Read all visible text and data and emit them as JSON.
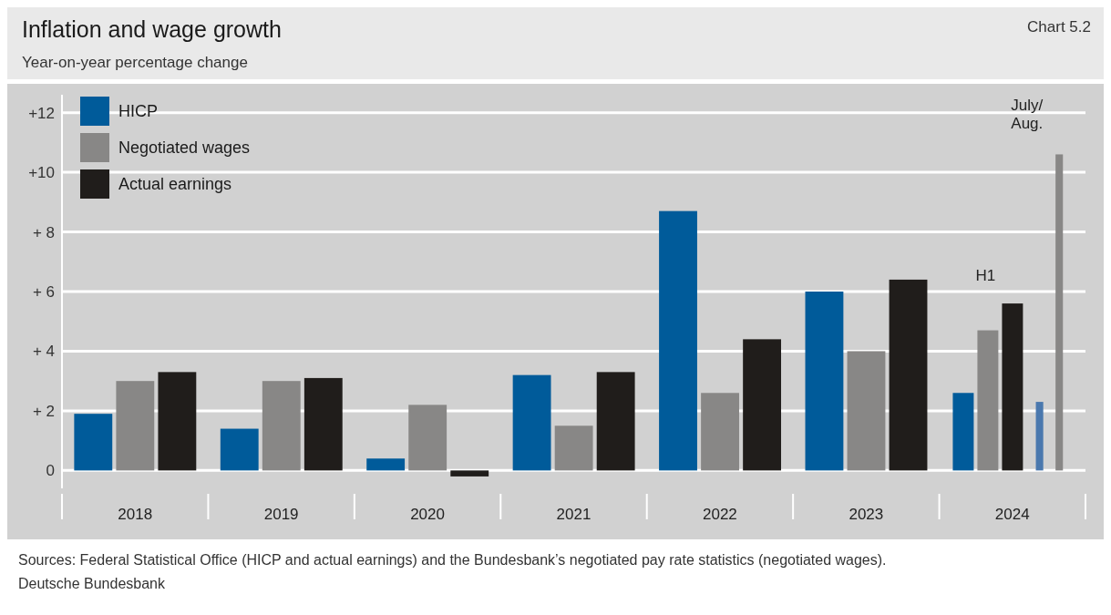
{
  "chart_data": {
    "type": "bar",
    "title": "Inflation and wage growth",
    "subtitle": "Year-on-year percentage change",
    "categories": [
      "2018",
      "2019",
      "2020",
      "2021",
      "2022",
      "2023",
      "2024"
    ],
    "series": [
      {
        "name": "HICP",
        "color": "#005b9a",
        "values": [
          1.9,
          1.4,
          0.4,
          3.2,
          8.7,
          6.0,
          2.6
        ]
      },
      {
        "name": "Negotiated wages",
        "color": "#888786",
        "values": [
          3.0,
          3.0,
          2.2,
          1.5,
          2.6,
          4.0,
          4.7
        ]
      },
      {
        "name": "Actual earnings",
        "color": "#201d1b",
        "values": [
          3.3,
          3.1,
          -0.2,
          3.3,
          4.4,
          6.4,
          5.6
        ]
      },
      {
        "color": "#4a78ae",
        "values": [
          null,
          null,
          null,
          null,
          null,
          null,
          2.3
        ]
      },
      {
        "color": "#888786",
        "values": [
          null,
          null,
          null,
          null,
          null,
          null,
          10.6
        ]
      }
    ],
    "ylim": [
      -0.6,
      12.6
    ],
    "yticks": [
      {
        "value": 0,
        "label": "0"
      },
      {
        "value": 2,
        "label": "+ 2"
      },
      {
        "value": 4,
        "label": "+ 4"
      },
      {
        "value": 6,
        "label": "+ 6"
      },
      {
        "value": 8,
        "label": "+ 8"
      },
      {
        "value": 10,
        "label": "+10"
      },
      {
        "value": 12,
        "label": "+12"
      }
    ],
    "grid": "y",
    "legend": "top left",
    "annotations": [
      "Chart 5.2",
      "H1",
      "July/\nAug.",
      "Sources: Federal Statistical Office (HICP and actual earnings) and the Bundesbank’s negotiated pay rate statistics (negotiated wages).",
      "Deutsche Bundesbank"
    ]
  }
}
